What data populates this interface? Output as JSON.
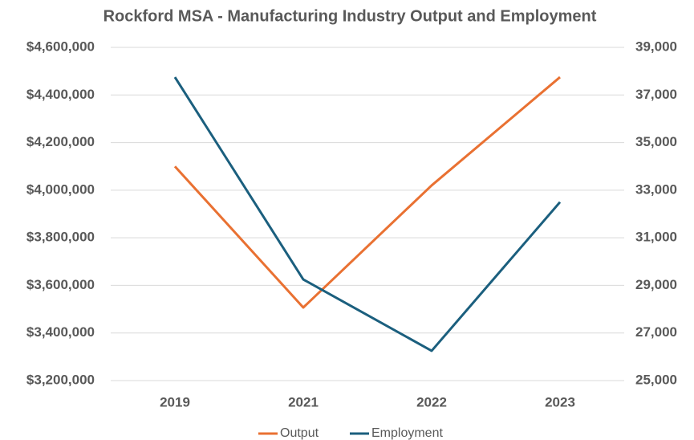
{
  "chart_data": {
    "type": "line",
    "title": "Rockford MSA - Manufacturing Industry Output and Employment",
    "categories": [
      "2019",
      "2021",
      "2022",
      "2023"
    ],
    "series": [
      {
        "name": "Output",
        "color": "#e97132",
        "values": [
          4100000,
          3507000,
          4020000,
          4475000
        ]
      },
      {
        "name": "Employment",
        "color": "#1b5f7e",
        "axis": "y2",
        "values": [
          37750,
          29250,
          26250,
          32500
        ]
      }
    ],
    "ylim": [
      3200000,
      4600000
    ],
    "yticks": [
      {
        "value": 3200000,
        "label": "$3,200,000"
      },
      {
        "value": 3400000,
        "label": "$3,400,000"
      },
      {
        "value": 3600000,
        "label": "$3,600,000"
      },
      {
        "value": 3800000,
        "label": "$3,800,000"
      },
      {
        "value": 4000000,
        "label": "$4,000,000"
      },
      {
        "value": 4200000,
        "label": "$4,200,000"
      },
      {
        "value": 4400000,
        "label": "$4,400,000"
      },
      {
        "value": 4600000,
        "label": "$4,600,000"
      }
    ],
    "y2lim": [
      25000,
      39000
    ],
    "y2ticks": [
      {
        "value": 25000,
        "label": "25,000"
      },
      {
        "value": 27000,
        "label": "27,000"
      },
      {
        "value": 29000,
        "label": "29,000"
      },
      {
        "value": 31000,
        "label": "31,000"
      },
      {
        "value": 33000,
        "label": "33,000"
      },
      {
        "value": 35000,
        "label": "35,000"
      },
      {
        "value": 37000,
        "label": "37,000"
      },
      {
        "value": 39000,
        "label": "39,000"
      }
    ],
    "grid": true,
    "legend": "bottom"
  }
}
